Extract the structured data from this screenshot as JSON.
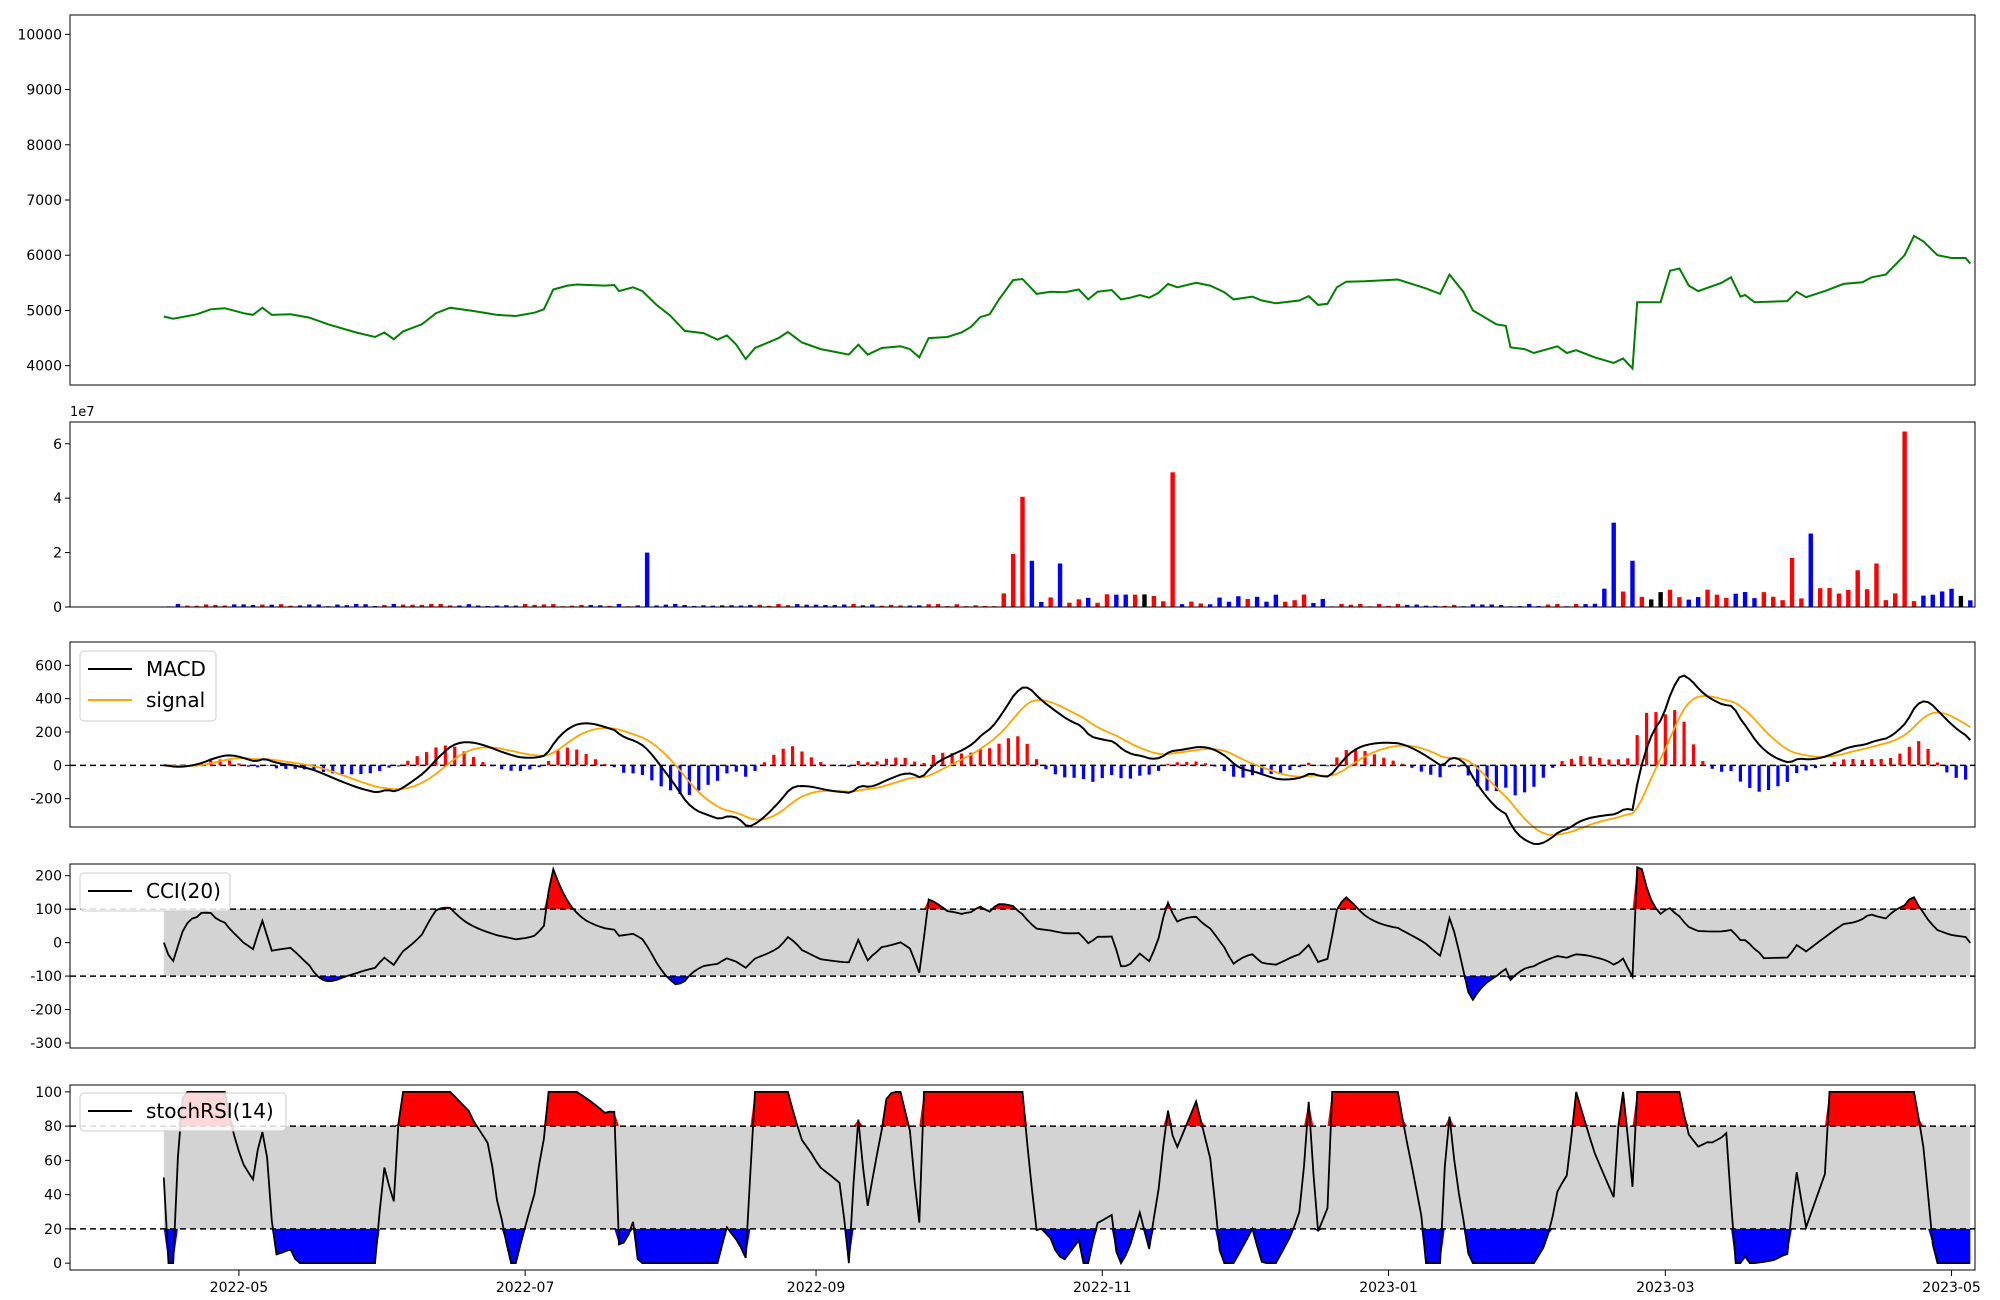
{
  "chart_data": [
    {
      "type": "line",
      "panel": "price",
      "series": [
        {
          "color": "#008000"
        }
      ],
      "ylim": [
        3650,
        10350
      ],
      "yticks": [
        "4000",
        "5000",
        "6000",
        "7000",
        "8000",
        "9000",
        "10000"
      ],
      "x_range": [
        "2022-03-26",
        "2023-05-06"
      ],
      "price_anchors": [
        [
          "2022-04-15",
          4890
        ],
        [
          "2022-04-17",
          4850
        ],
        [
          "2022-04-22",
          4930
        ],
        [
          "2022-04-25",
          5020
        ],
        [
          "2022-04-28",
          5040
        ],
        [
          "2022-05-02",
          4950
        ],
        [
          "2022-05-04",
          4920
        ],
        [
          "2022-05-06",
          5050
        ],
        [
          "2022-05-08",
          4920
        ],
        [
          "2022-05-12",
          4930
        ],
        [
          "2022-05-16",
          4870
        ],
        [
          "2022-05-20",
          4750
        ],
        [
          "2022-05-26",
          4600
        ],
        [
          "2022-05-30",
          4520
        ],
        [
          "2022-06-01",
          4600
        ],
        [
          "2022-06-03",
          4480
        ],
        [
          "2022-06-05",
          4620
        ],
        [
          "2022-06-09",
          4750
        ],
        [
          "2022-06-12",
          4950
        ],
        [
          "2022-06-15",
          5050
        ],
        [
          "2022-06-20",
          4990
        ],
        [
          "2022-06-25",
          4920
        ],
        [
          "2022-06-29",
          4900
        ],
        [
          "2022-07-03",
          4960
        ],
        [
          "2022-07-05",
          5020
        ],
        [
          "2022-07-07",
          5380
        ],
        [
          "2022-07-10",
          5450
        ],
        [
          "2022-07-12",
          5470
        ],
        [
          "2022-07-18",
          5450
        ],
        [
          "2022-07-20",
          5460
        ],
        [
          "2022-07-21",
          5350
        ],
        [
          "2022-07-24",
          5420
        ],
        [
          "2022-07-26",
          5350
        ],
        [
          "2022-07-29",
          5100
        ],
        [
          "2022-08-01",
          4900
        ],
        [
          "2022-08-04",
          4630
        ],
        [
          "2022-08-08",
          4590
        ],
        [
          "2022-08-11",
          4470
        ],
        [
          "2022-08-13",
          4550
        ],
        [
          "2022-08-15",
          4380
        ],
        [
          "2022-08-17",
          4120
        ],
        [
          "2022-08-19",
          4320
        ],
        [
          "2022-08-24",
          4500
        ],
        [
          "2022-08-26",
          4610
        ],
        [
          "2022-08-29",
          4420
        ],
        [
          "2022-09-02",
          4300
        ],
        [
          "2022-09-08",
          4200
        ],
        [
          "2022-09-10",
          4380
        ],
        [
          "2022-09-12",
          4200
        ],
        [
          "2022-09-15",
          4320
        ],
        [
          "2022-09-19",
          4350
        ],
        [
          "2022-09-21",
          4300
        ],
        [
          "2022-09-23",
          4150
        ],
        [
          "2022-09-25",
          4500
        ],
        [
          "2022-09-29",
          4520
        ],
        [
          "2022-10-02",
          4600
        ],
        [
          "2022-10-04",
          4700
        ],
        [
          "2022-10-06",
          4880
        ],
        [
          "2022-10-08",
          4930
        ],
        [
          "2022-10-10",
          5200
        ],
        [
          "2022-10-13",
          5550
        ],
        [
          "2022-10-15",
          5570
        ],
        [
          "2022-10-18",
          5300
        ],
        [
          "2022-10-21",
          5340
        ],
        [
          "2022-10-24",
          5330
        ],
        [
          "2022-10-27",
          5380
        ],
        [
          "2022-10-29",
          5200
        ],
        [
          "2022-10-31",
          5340
        ],
        [
          "2022-11-03",
          5370
        ],
        [
          "2022-11-05",
          5200
        ],
        [
          "2022-11-07",
          5230
        ],
        [
          "2022-11-09",
          5280
        ],
        [
          "2022-11-11",
          5230
        ],
        [
          "2022-11-13",
          5320
        ],
        [
          "2022-11-15",
          5480
        ],
        [
          "2022-11-17",
          5420
        ],
        [
          "2022-11-21",
          5500
        ],
        [
          "2022-11-24",
          5450
        ],
        [
          "2022-11-27",
          5330
        ],
        [
          "2022-11-29",
          5200
        ],
        [
          "2022-12-03",
          5250
        ],
        [
          "2022-12-05",
          5180
        ],
        [
          "2022-12-08",
          5130
        ],
        [
          "2022-12-13",
          5180
        ],
        [
          "2022-12-15",
          5260
        ],
        [
          "2022-12-17",
          5100
        ],
        [
          "2022-12-19",
          5120
        ],
        [
          "2022-12-21",
          5420
        ],
        [
          "2022-12-23",
          5520
        ],
        [
          "2022-12-27",
          5530
        ],
        [
          "2023-01-03",
          5560
        ],
        [
          "2023-01-06",
          5480
        ],
        [
          "2023-01-09",
          5400
        ],
        [
          "2023-01-12",
          5300
        ],
        [
          "2023-01-14",
          5650
        ],
        [
          "2023-01-17",
          5330
        ],
        [
          "2023-01-19",
          5000
        ],
        [
          "2023-01-24",
          4750
        ],
        [
          "2023-01-26",
          4720
        ],
        [
          "2023-01-27",
          4330
        ],
        [
          "2023-01-30",
          4300
        ],
        [
          "2023-02-01",
          4230
        ],
        [
          "2023-02-06",
          4350
        ],
        [
          "2023-02-08",
          4230
        ],
        [
          "2023-02-10",
          4280
        ],
        [
          "2023-02-14",
          4150
        ],
        [
          "2023-02-18",
          4050
        ],
        [
          "2023-02-20",
          4130
        ],
        [
          "2023-02-22",
          3950
        ],
        [
          "2023-02-23",
          5150
        ],
        [
          "2023-02-28",
          5150
        ],
        [
          "2023-03-02",
          5720
        ],
        [
          "2023-03-04",
          5760
        ],
        [
          "2023-03-06",
          5450
        ],
        [
          "2023-03-08",
          5350
        ],
        [
          "2023-03-13",
          5500
        ],
        [
          "2023-03-15",
          5600
        ],
        [
          "2023-03-17",
          5250
        ],
        [
          "2023-03-18",
          5280
        ],
        [
          "2023-03-20",
          5150
        ],
        [
          "2023-03-27",
          5170
        ],
        [
          "2023-03-29",
          5340
        ],
        [
          "2023-03-31",
          5240
        ],
        [
          "2023-04-04",
          5350
        ],
        [
          "2023-04-08",
          5480
        ],
        [
          "2023-04-12",
          5510
        ],
        [
          "2023-04-14",
          5600
        ],
        [
          "2023-04-17",
          5650
        ],
        [
          "2023-04-21",
          6000
        ],
        [
          "2023-04-23",
          6350
        ],
        [
          "2023-04-25",
          6250
        ],
        [
          "2023-04-28",
          6000
        ],
        [
          "2023-05-01",
          5950
        ],
        [
          "2023-05-04",
          5950
        ],
        [
          "2023-05-05",
          5850
        ]
      ]
    },
    {
      "type": "bar",
      "panel": "volume",
      "scale_label": "1e7",
      "ylim": [
        0,
        68000000
      ],
      "yticks": [
        "0",
        "2",
        "4",
        "6"
      ],
      "colors": {
        "up": "#ff0000",
        "down": "#0000ff",
        "flat": "#000000"
      },
      "notable_bars": [
        [
          "2022-07-26",
          20000000
        ],
        [
          "2022-10-12",
          19500000
        ],
        [
          "2022-10-14",
          40500000
        ],
        [
          "2022-10-16",
          17000000
        ],
        [
          "2022-10-23",
          16000000
        ],
        [
          "2022-11-16",
          49500000
        ],
        [
          "2023-02-18",
          31000000
        ],
        [
          "2023-02-21",
          17000000
        ],
        [
          "2023-03-28",
          18000000
        ],
        [
          "2023-03-31",
          27000000
        ],
        [
          "2023-04-10",
          13500000
        ],
        [
          "2023-04-14",
          16000000
        ],
        [
          "2023-04-21",
          64500000
        ]
      ]
    },
    {
      "type": "line",
      "panel": "macd",
      "ylim": [
        -370,
        740
      ],
      "yticks": [
        "-200",
        "0",
        "200",
        "400",
        "600"
      ],
      "legend": {
        "placement": "upper-left",
        "entries": [
          "MACD",
          "signal"
        ]
      },
      "series": [
        {
          "name": "MACD",
          "color": "#000000"
        },
        {
          "name": "signal",
          "color": "#ffa500"
        }
      ],
      "histogram_colors": {
        "positive": "#ff0000",
        "negative": "#0000ff"
      },
      "zero_line": true
    },
    {
      "type": "area",
      "panel": "cci",
      "ylim": [
        -315,
        235
      ],
      "yticks": [
        "-300",
        "-200",
        "-100",
        "0",
        "100",
        "200"
      ],
      "bands": [
        -100,
        100
      ],
      "legend": {
        "placement": "upper-left",
        "entries": [
          "CCI(20)"
        ]
      },
      "fill_colors": {
        "band": "#d3d3d3",
        "above": "#ff0000",
        "below": "#0000ff"
      }
    },
    {
      "type": "area",
      "panel": "stochrsi",
      "ylim": [
        -4,
        104
      ],
      "yticks": [
        "0",
        "20",
        "40",
        "60",
        "80",
        "100"
      ],
      "bands": [
        20,
        80
      ],
      "legend": {
        "placement": "upper-left",
        "entries": [
          "stochRSI(14)"
        ]
      },
      "fill_colors": {
        "band": "#d3d3d3",
        "above": "#ff0000",
        "below": "#0000ff"
      }
    }
  ],
  "x_axis": {
    "ticks": [
      {
        "date": "2022-05-01",
        "label": "2022-05"
      },
      {
        "date": "2022-07-01",
        "label": "2022-07"
      },
      {
        "date": "2022-09-01",
        "label": "2022-09"
      },
      {
        "date": "2022-11-01",
        "label": "2022-11"
      },
      {
        "date": "2023-01-01",
        "label": "2023-01"
      },
      {
        "date": "2023-03-01",
        "label": "2023-03"
      },
      {
        "date": "2023-05-01",
        "label": "2023-05"
      }
    ]
  }
}
